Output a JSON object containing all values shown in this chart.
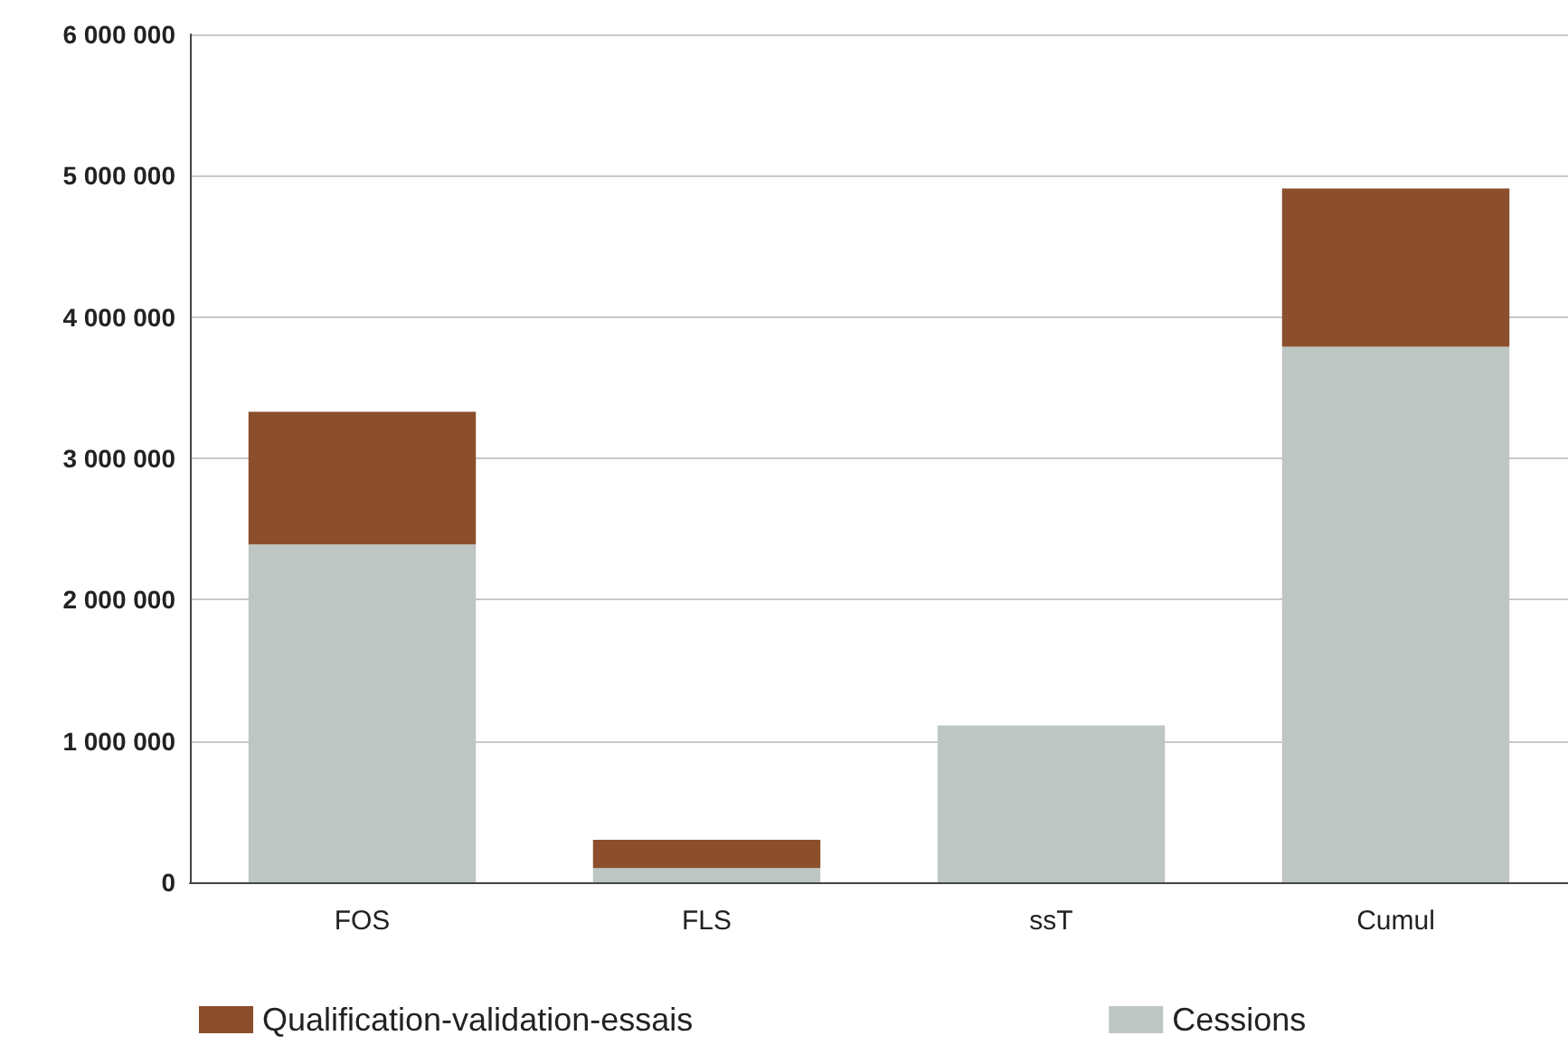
{
  "chart_data": {
    "type": "bar",
    "stacked": true,
    "categories": [
      "FOS",
      "FLS",
      "ssT",
      "Cumul"
    ],
    "series": [
      {
        "name": "Cessions",
        "color": "#bec6c3",
        "values": [
          2390000,
          100000,
          1110000,
          3790000
        ]
      },
      {
        "name": "Qualification-validation-essais",
        "color": "#8b4f2c",
        "values": [
          940000,
          200000,
          null,
          1120000
        ]
      }
    ],
    "ylim": [
      0,
      6000000
    ],
    "yticks": [
      {
        "value": 0,
        "label": "0"
      },
      {
        "value": 1000000,
        "label": "1 000 000"
      },
      {
        "value": 2000000,
        "label": "2 000 000"
      },
      {
        "value": 3000000,
        "label": "3 000 000"
      },
      {
        "value": 4000000,
        "label": "4 000 000"
      },
      {
        "value": 5000000,
        "label": "5 000 000"
      },
      {
        "value": 6000000,
        "label": "6 000 000"
      }
    ],
    "grid": "y",
    "legend": "bottom"
  }
}
